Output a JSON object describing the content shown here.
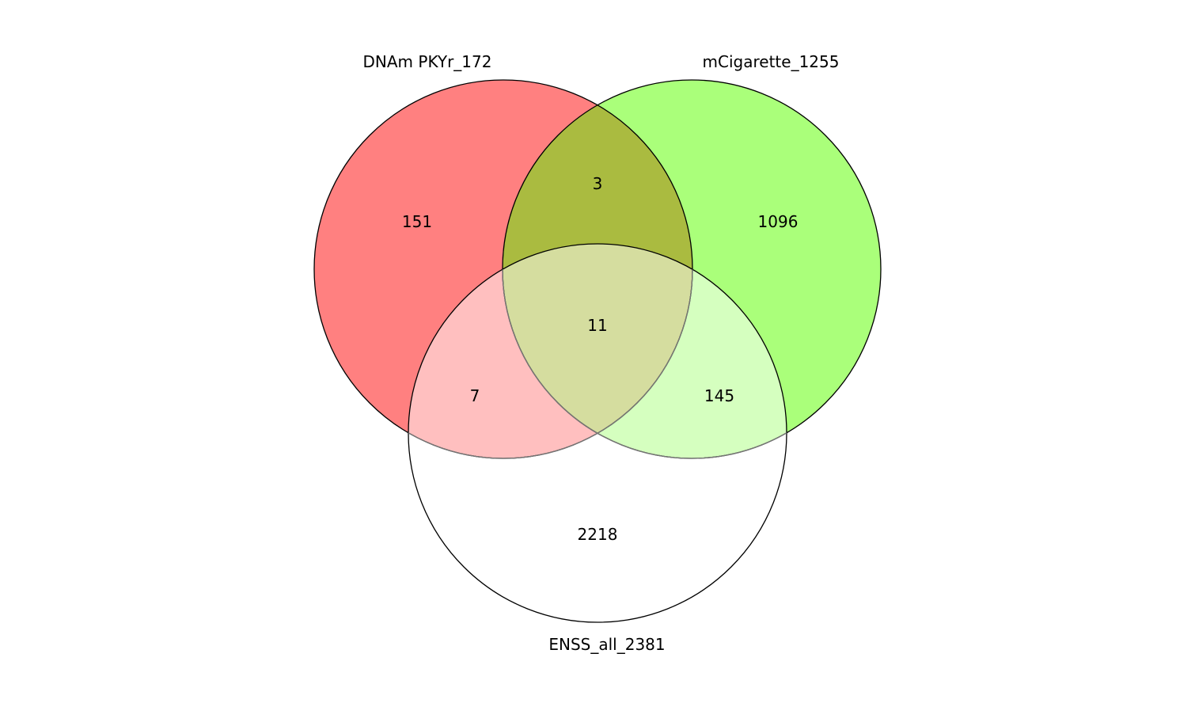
{
  "diagram": {
    "type": "venn-3",
    "sets": [
      {
        "key": "A",
        "label": "DNAm PKYr_172",
        "color": "#ff8080"
      },
      {
        "key": "B",
        "label": "mCigarette_1255",
        "color": "#aaff7a"
      },
      {
        "key": "C",
        "label": "ENSS_all_2381",
        "color": "#ffffff"
      }
    ],
    "regions": [
      {
        "sets": "A",
        "count": "151"
      },
      {
        "sets": "B",
        "count": "1096"
      },
      {
        "sets": "C",
        "count": "2218"
      },
      {
        "sets": "AB",
        "count": "3"
      },
      {
        "sets": "AC",
        "count": "7"
      },
      {
        "sets": "BC",
        "count": "145"
      },
      {
        "sets": "ABC",
        "count": "11"
      }
    ],
    "region_colors": {
      "AB": "#aabb40",
      "AC": "#ffbfbf",
      "BC": "#d5ffbf",
      "ABC": "#d5dd9f"
    }
  }
}
